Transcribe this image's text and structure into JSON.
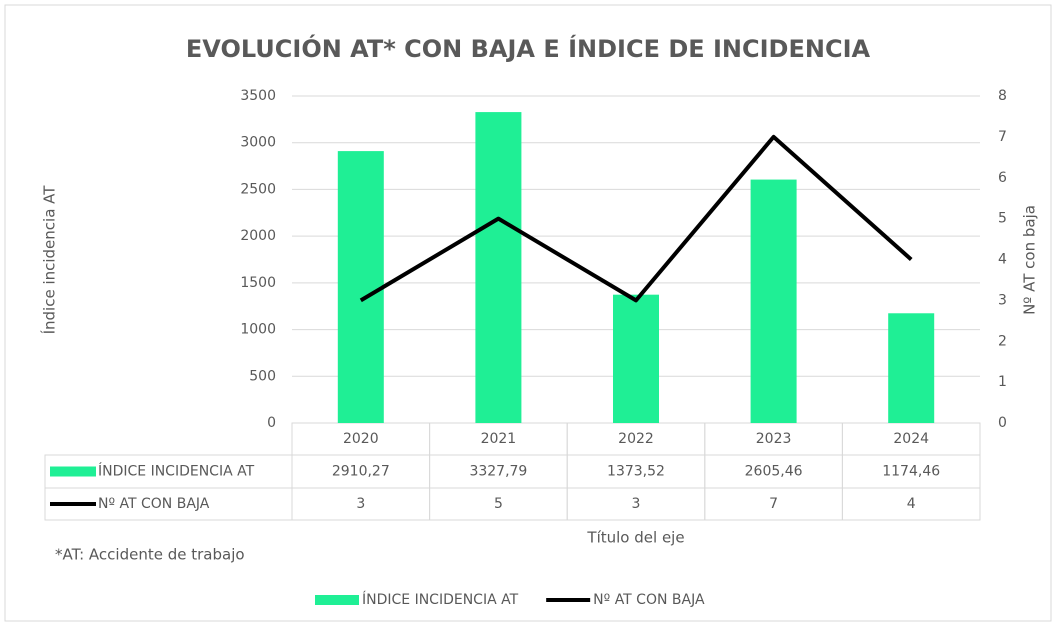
{
  "chart_data": {
    "type": "bar",
    "title": "EVOLUCIÓN AT* CON BAJA E ÍNDICE DE INCIDENCIA",
    "y_label": "Índice incidencia AT",
    "y2_label": "Nº AT con baja",
    "x_label": "Título del eje",
    "note": "*AT: Accidente de trabajo",
    "categories": [
      "2020",
      "2021",
      "2022",
      "2023",
      "2024"
    ],
    "series": [
      {
        "name": "ÍNDICE INCIDENCIA AT",
        "type": "bar",
        "color": "#1fef95",
        "values": [
          2910.27,
          3327.79,
          1373.52,
          2605.46,
          1174.46
        ],
        "value_labels": [
          "2910,27",
          "3327,79",
          "1373,52",
          "2605,46",
          "1174,46"
        ]
      },
      {
        "name": "Nº AT CON BAJA",
        "type": "line",
        "axis": "y2",
        "color": "#000000",
        "values": [
          3,
          5,
          3,
          7,
          4
        ]
      }
    ],
    "ylim": [
      0,
      3500
    ],
    "yticks": [
      0,
      500,
      1000,
      1500,
      2000,
      2500,
      3000,
      3500
    ],
    "y2lim": [
      0,
      8
    ],
    "y2ticks": [
      0,
      1,
      2,
      3,
      4,
      5,
      6,
      7,
      8
    ],
    "grid": true
  }
}
